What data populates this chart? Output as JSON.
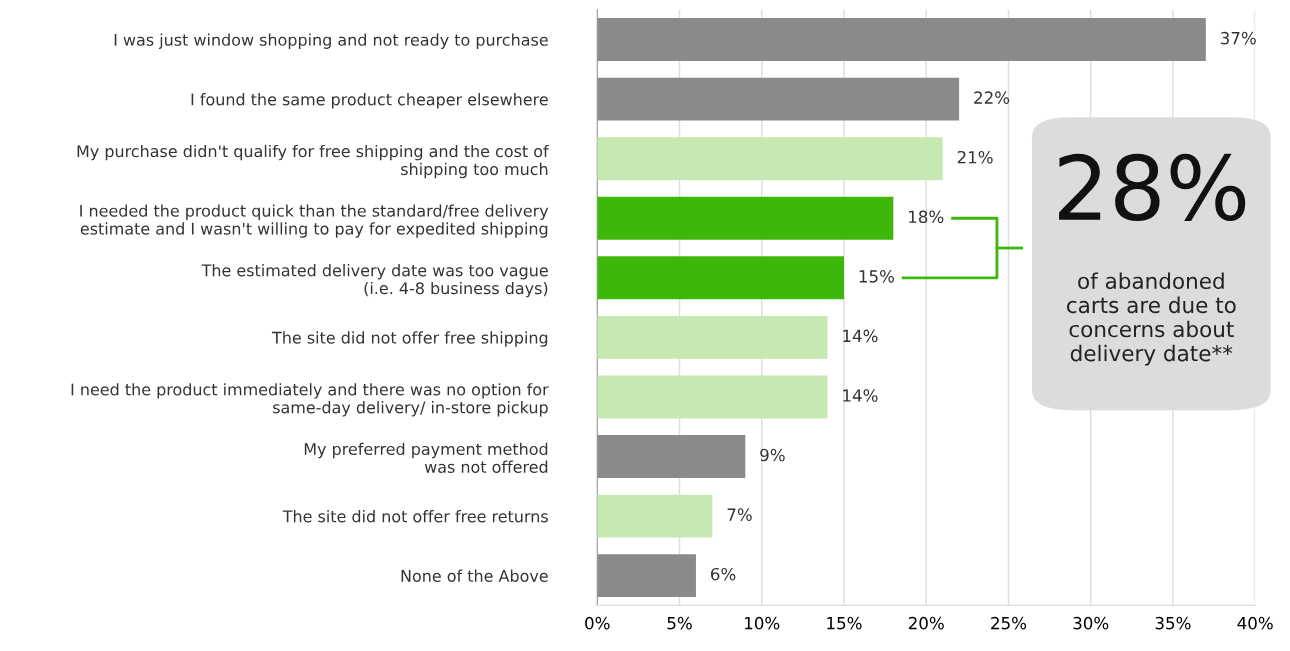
{
  "chart_data": {
    "type": "bar",
    "orientation": "horizontal",
    "categories": [
      "I was just window shopping and not ready to purchase",
      "I found the same product cheaper elsewhere",
      "My purchase didn't qualify for free shipping and the cost of\nshipping too much",
      "I needed the product quick than the standard/free delivery\nestimate and I wasn't willing to pay for expedited shipping",
      "The estimated delivery date was too vague\n(i.e. 4-8 business days)",
      "The site did not offer free shipping",
      "I need the product immediately and there was no option for\nsame-day delivery/ in-store pickup",
      "My preferred payment method\nwas not offered",
      "The site did not offer free returns",
      "None of the Above"
    ],
    "values": [
      37,
      22,
      21,
      18,
      15,
      14,
      14,
      9,
      7,
      6
    ],
    "value_labels": [
      "37%",
      "22%",
      "21%",
      "18%",
      "15%",
      "14%",
      "14%",
      "9%",
      "7%",
      "6%"
    ],
    "colors": [
      "#8a8a8a",
      "#8a8a8a",
      "#c6e9b2",
      "#3db80a",
      "#3db80a",
      "#c6e9b2",
      "#c6e9b2",
      "#8a8a8a",
      "#c6e9b2",
      "#8a8a8a"
    ],
    "xlim": [
      0,
      40
    ],
    "xticks": [
      {
        "value": 0,
        "label": "0%"
      },
      {
        "value": 5,
        "label": "5%"
      },
      {
        "value": 10,
        "label": "10%"
      },
      {
        "value": 15,
        "label": "15%"
      },
      {
        "value": 20,
        "label": "20%"
      },
      {
        "value": 25,
        "label": "25%"
      },
      {
        "value": 30,
        "label": "30%"
      },
      {
        "value": 35,
        "label": "35%"
      },
      {
        "value": 40,
        "label": "40%"
      }
    ],
    "grid": "x",
    "annotations": [
      "28%",
      "of abandoned\ncarts are due to\nconcerns about\ndelivery date**"
    ]
  }
}
